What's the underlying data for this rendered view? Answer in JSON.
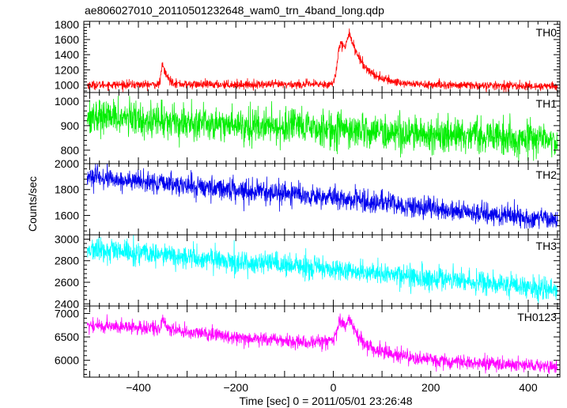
{
  "chart_data": {
    "type": "line",
    "title": "ae806027010_20110501232648_wam0_trn_4band_long.qdp",
    "xlabel": "Time [sec] 0 = 2011/05/01 23:26:48",
    "ylabel": "Counts/sec",
    "xlim": [
      -512,
      465
    ],
    "xticks": [
      -400,
      -200,
      0,
      200,
      400
    ],
    "grid": false,
    "panels": [
      {
        "name": "TH0",
        "color": "#ff0000",
        "ylim": [
          900,
          1840
        ],
        "yticks": [
          1000,
          1200,
          1400,
          1600,
          1800
        ],
        "baseline": [
          [
            -505,
            1000
          ],
          [
            -400,
            1005
          ],
          [
            -100,
            1005
          ],
          [
            -20,
            1010
          ],
          [
            400,
            985
          ],
          [
            460,
            980
          ]
        ],
        "noise": 30,
        "features": [
          {
            "type": "flare",
            "center": -350,
            "peak": 260,
            "rise": 3,
            "decay": 10
          },
          {
            "type": "flare",
            "center": 15,
            "peak": 570,
            "rise": 6,
            "decay": 40
          },
          {
            "type": "flare",
            "center": 33,
            "peak": 330,
            "rise": 4,
            "decay": 22
          }
        ]
      },
      {
        "name": "TH1",
        "color": "#00ee00",
        "ylim": [
          745,
          1035
        ],
        "yticks": [
          800,
          900,
          1000
        ],
        "baseline": [
          [
            -505,
            940
          ],
          [
            -300,
            915
          ],
          [
            0,
            885
          ],
          [
            200,
            865
          ],
          [
            460,
            840
          ]
        ],
        "noise": 38,
        "features": []
      },
      {
        "name": "TH2",
        "color": "#0000ee",
        "ylim": [
          1450,
          2000
        ],
        "yticks": [
          1600,
          1800,
          2000
        ],
        "baseline": [
          [
            -505,
            1900
          ],
          [
            -400,
            1860
          ],
          [
            -200,
            1800
          ],
          [
            0,
            1740
          ],
          [
            200,
            1650
          ],
          [
            460,
            1560
          ]
        ],
        "noise": 45,
        "features": []
      },
      {
        "name": "TH3",
        "color": "#00ffff",
        "ylim": [
          2380,
          3040
        ],
        "yticks": [
          2400,
          2600,
          2800,
          3000
        ],
        "baseline": [
          [
            -505,
            2900
          ],
          [
            -400,
            2870
          ],
          [
            -200,
            2790
          ],
          [
            0,
            2720
          ],
          [
            200,
            2640
          ],
          [
            460,
            2520
          ]
        ],
        "noise": 58,
        "features": []
      },
      {
        "name": "TH0123",
        "color": "#ff00ff",
        "ylim": [
          5640,
          7160
        ],
        "yticks": [
          6000,
          6500,
          7000
        ],
        "baseline": [
          [
            -505,
            6750
          ],
          [
            -400,
            6700
          ],
          [
            -300,
            6600
          ],
          [
            -200,
            6500
          ],
          [
            -50,
            6380
          ],
          [
            0,
            6420
          ],
          [
            60,
            6150
          ],
          [
            200,
            6000
          ],
          [
            460,
            5850
          ]
        ],
        "noise": 80,
        "features": [
          {
            "type": "flare",
            "center": -350,
            "peak": 220,
            "rise": 3,
            "decay": 10
          },
          {
            "type": "flare",
            "center": 15,
            "peak": 500,
            "rise": 6,
            "decay": 40
          },
          {
            "type": "flare",
            "center": 33,
            "peak": 300,
            "rise": 4,
            "decay": 22
          }
        ]
      }
    ],
    "x_step": 0.5
  }
}
